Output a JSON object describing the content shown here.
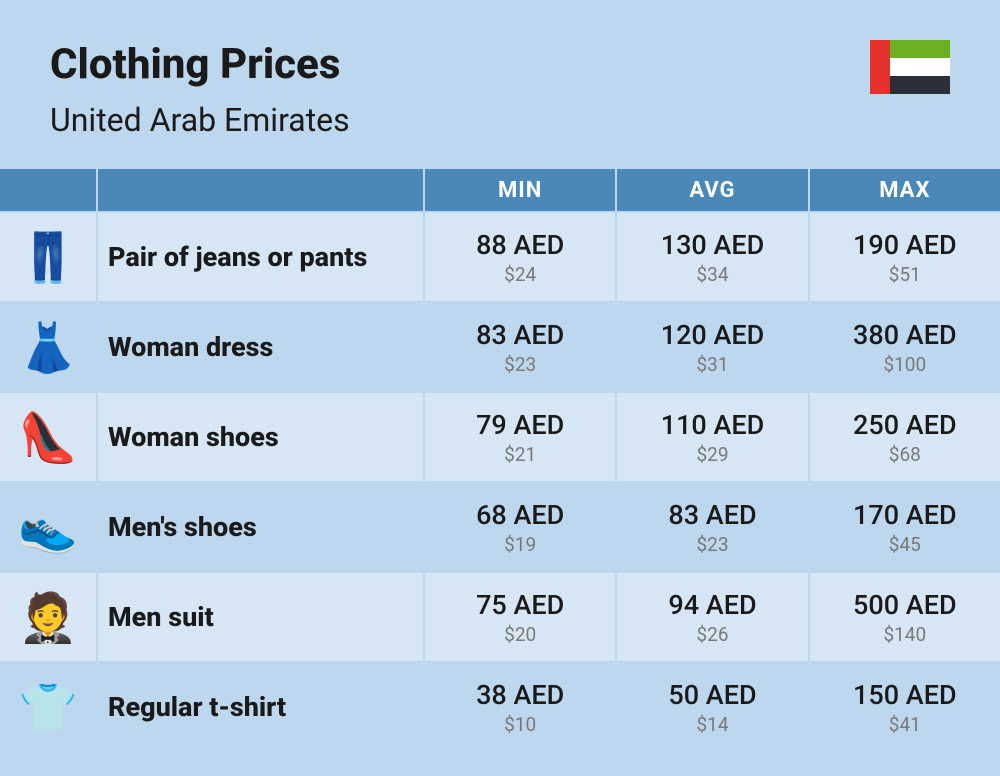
{
  "header": {
    "title": "Clothing Prices",
    "subtitle": "United Arab Emirates"
  },
  "flag": {
    "left": "#e4312b",
    "top": "#6ab023",
    "mid": "#ffffff",
    "bot": "#2b2f3a"
  },
  "table": {
    "headers": {
      "min": "MIN",
      "avg": "AVG",
      "max": "MAX"
    },
    "rows": [
      {
        "icon": "👖",
        "label": "Pair of jeans or pants",
        "min": {
          "main": "88 AED",
          "sub": "$24"
        },
        "avg": {
          "main": "130 AED",
          "sub": "$34"
        },
        "max": {
          "main": "190 AED",
          "sub": "$51"
        }
      },
      {
        "icon": "👗",
        "label": "Woman dress",
        "min": {
          "main": "83 AED",
          "sub": "$23"
        },
        "avg": {
          "main": "120 AED",
          "sub": "$31"
        },
        "max": {
          "main": "380 AED",
          "sub": "$100"
        }
      },
      {
        "icon": "👠",
        "label": "Woman shoes",
        "min": {
          "main": "79 AED",
          "sub": "$21"
        },
        "avg": {
          "main": "110 AED",
          "sub": "$29"
        },
        "max": {
          "main": "250 AED",
          "sub": "$68"
        }
      },
      {
        "icon": "👟",
        "label": "Men's shoes",
        "min": {
          "main": "68 AED",
          "sub": "$19"
        },
        "avg": {
          "main": "83 AED",
          "sub": "$23"
        },
        "max": {
          "main": "170 AED",
          "sub": "$45"
        }
      },
      {
        "icon": "🤵",
        "label": "Men suit",
        "min": {
          "main": "75 AED",
          "sub": "$20"
        },
        "avg": {
          "main": "94 AED",
          "sub": "$26"
        },
        "max": {
          "main": "500 AED",
          "sub": "$140"
        }
      },
      {
        "icon": "👕",
        "label": "Regular t-shirt",
        "min": {
          "main": "38 AED",
          "sub": "$10"
        },
        "avg": {
          "main": "50 AED",
          "sub": "$14"
        },
        "max": {
          "main": "150 AED",
          "sub": "$41"
        }
      }
    ]
  },
  "colors": {
    "page_bg": "#bdd7ee",
    "row_alt_bg": "#d6e6f4",
    "header_bg": "#4a88ba",
    "text_main": "#1a1a1a",
    "text_sub": "#7a7a7a"
  }
}
